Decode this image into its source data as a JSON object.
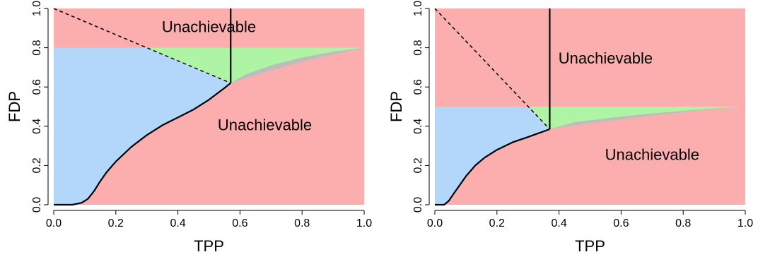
{
  "colors": {
    "unachievable": "#fcaeae",
    "blue_region": "#b3d6fb",
    "green_region": "#aef4a4",
    "gray_region": "#bdbdbd",
    "boundary": "#000000"
  },
  "chart_data": [
    {
      "type": "area",
      "xlabel": "TPP",
      "ylabel": "FDP",
      "xlim": [
        0,
        1
      ],
      "ylim": [
        0,
        1
      ],
      "x_ticks": [
        "0.0",
        "0.2",
        "0.4",
        "0.6",
        "0.8",
        "1.0"
      ],
      "y_ticks": [
        "0.0",
        "0.2",
        "0.4",
        "0.6",
        "0.8",
        "1.0"
      ],
      "region_labels": [
        {
          "text": "Unachievable",
          "x": 0.5,
          "y": 0.9
        },
        {
          "text": "Unachievable",
          "x": 0.68,
          "y": 0.4
        }
      ],
      "fdp_level": 0.8,
      "intersection": {
        "tpp": 0.57,
        "fdp": 0.62
      },
      "vertical_line_tpp": 0.57,
      "boundary_curve": [
        [
          0.0,
          0.0
        ],
        [
          0.06,
          0.0
        ],
        [
          0.09,
          0.01
        ],
        [
          0.11,
          0.03
        ],
        [
          0.13,
          0.07
        ],
        [
          0.15,
          0.12
        ],
        [
          0.17,
          0.165
        ],
        [
          0.2,
          0.22
        ],
        [
          0.25,
          0.295
        ],
        [
          0.3,
          0.355
        ],
        [
          0.35,
          0.405
        ],
        [
          0.4,
          0.445
        ],
        [
          0.45,
          0.485
        ],
        [
          0.5,
          0.535
        ],
        [
          0.55,
          0.595
        ],
        [
          0.57,
          0.62
        ]
      ],
      "gray_region_lower": [
        [
          0.57,
          0.62
        ],
        [
          0.62,
          0.645
        ],
        [
          0.7,
          0.685
        ],
        [
          0.8,
          0.73
        ],
        [
          0.9,
          0.765
        ],
        [
          1.0,
          0.8
        ]
      ],
      "gray_region_upper": [
        [
          0.57,
          0.62
        ],
        [
          0.62,
          0.665
        ],
        [
          0.7,
          0.71
        ],
        [
          0.8,
          0.75
        ],
        [
          0.9,
          0.78
        ],
        [
          1.0,
          0.8
        ]
      ],
      "dashed_line": [
        [
          0.0,
          1.0
        ],
        [
          0.57,
          0.62
        ]
      ]
    },
    {
      "type": "area",
      "xlabel": "TPP",
      "ylabel": "FDP",
      "xlim": [
        0,
        1
      ],
      "ylim": [
        0,
        1
      ],
      "x_ticks": [
        "0.0",
        "0.2",
        "0.4",
        "0.6",
        "0.8",
        "1.0"
      ],
      "y_ticks": [
        "0.0",
        "0.2",
        "0.4",
        "0.6",
        "0.8",
        "1.0"
      ],
      "region_labels": [
        {
          "text": "Unachievable",
          "x": 0.55,
          "y": 0.74
        },
        {
          "text": "Unachievable",
          "x": 0.7,
          "y": 0.25
        }
      ],
      "fdp_level": 0.5,
      "intersection": {
        "tpp": 0.37,
        "fdp": 0.385
      },
      "vertical_line_tpp": 0.37,
      "boundary_curve": [
        [
          0.0,
          0.0
        ],
        [
          0.03,
          0.0
        ],
        [
          0.045,
          0.02
        ],
        [
          0.06,
          0.055
        ],
        [
          0.08,
          0.1
        ],
        [
          0.1,
          0.145
        ],
        [
          0.13,
          0.2
        ],
        [
          0.16,
          0.24
        ],
        [
          0.2,
          0.28
        ],
        [
          0.25,
          0.318
        ],
        [
          0.3,
          0.345
        ],
        [
          0.37,
          0.385
        ]
      ],
      "gray_region_lower": [
        [
          0.37,
          0.385
        ],
        [
          0.45,
          0.405
        ],
        [
          0.55,
          0.425
        ],
        [
          0.7,
          0.455
        ],
        [
          0.85,
          0.48
        ],
        [
          1.0,
          0.5
        ]
      ],
      "gray_region_upper": [
        [
          0.37,
          0.385
        ],
        [
          0.45,
          0.42
        ],
        [
          0.55,
          0.44
        ],
        [
          0.7,
          0.465
        ],
        [
          0.85,
          0.485
        ],
        [
          1.0,
          0.5
        ]
      ],
      "dashed_line": [
        [
          0.0,
          1.0
        ],
        [
          0.37,
          0.385
        ]
      ]
    }
  ]
}
